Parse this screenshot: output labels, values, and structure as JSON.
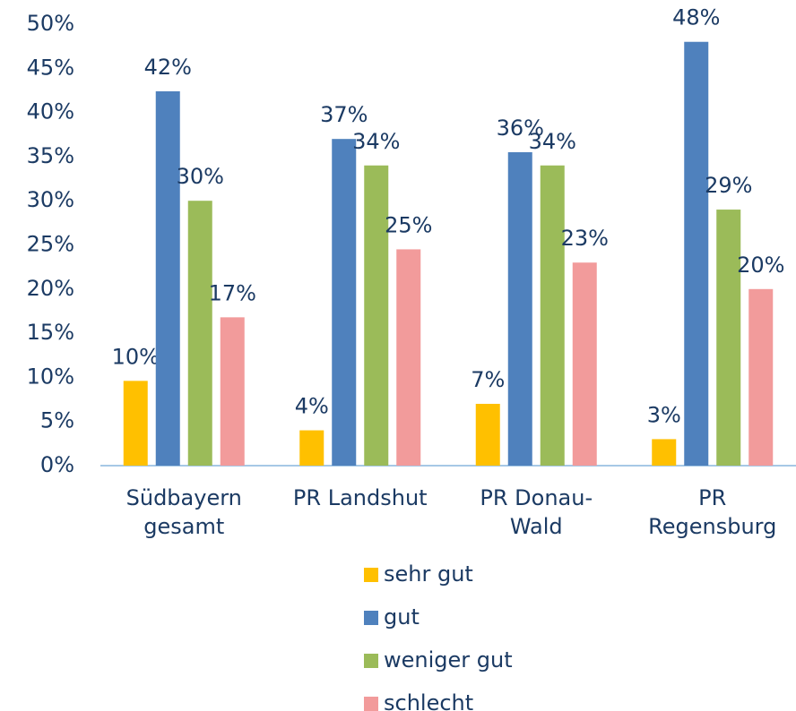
{
  "chart_data": {
    "type": "bar",
    "categories": [
      "Südbayern gesamt",
      "PR Landshut",
      "PR Donau-Wald",
      "PR Regensburg"
    ],
    "series": [
      {
        "name": "sehr gut",
        "color": "#ffc000",
        "values": [
          9.6,
          4,
          7,
          3
        ],
        "value_labels": [
          "10%",
          "4%",
          "7%",
          "3%"
        ]
      },
      {
        "name": "gut",
        "color": "#4f81bd",
        "values": [
          42.4,
          37,
          35.5,
          48
        ],
        "value_labels": [
          "42%",
          "37%",
          "36%",
          "48%"
        ]
      },
      {
        "name": "weniger gut",
        "color": "#9bbb59",
        "values": [
          30,
          34,
          34,
          29
        ],
        "value_labels": [
          "30%",
          "34%",
          "34%",
          "29%"
        ]
      },
      {
        "name": "schlecht",
        "color": "#f29b9b",
        "values": [
          16.8,
          24.5,
          23,
          20
        ],
        "value_labels": [
          "17%",
          "25%",
          "23%",
          "20%"
        ]
      }
    ],
    "ylim": [
      0,
      50
    ],
    "yticks": [
      {
        "value": 0,
        "label": "0%"
      },
      {
        "value": 5,
        "label": "5%"
      },
      {
        "value": 10,
        "label": "10%"
      },
      {
        "value": 15,
        "label": "15%"
      },
      {
        "value": 20,
        "label": "20%"
      },
      {
        "value": 25,
        "label": "25%"
      },
      {
        "value": 30,
        "label": "30%"
      },
      {
        "value": 35,
        "label": "35%"
      },
      {
        "value": 40,
        "label": "40%"
      },
      {
        "value": 45,
        "label": "45%"
      },
      {
        "value": 50,
        "label": "50%"
      }
    ],
    "grid": false,
    "legend": "bottom"
  }
}
